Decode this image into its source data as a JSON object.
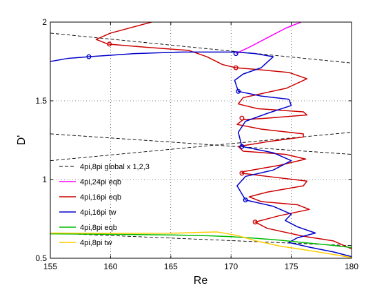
{
  "chart_data": {
    "type": "line",
    "title": "",
    "xlabel": "Re",
    "ylabel": "D'",
    "xlim": [
      155,
      180
    ],
    "ylim": [
      0.5,
      2
    ],
    "xticks": [
      "155",
      "160",
      "165",
      "170",
      "175",
      "180"
    ],
    "yticks": [
      "0.5",
      "1",
      "1.5",
      "2"
    ],
    "grid": true,
    "legend_position": "bottom-left",
    "series": [
      {
        "name": "4pi,8pi global x 1,2,3",
        "color": "#000000",
        "style": "dashed",
        "lines": [
          [
            [
              155,
              1.93
            ],
            [
              180,
              1.74
            ]
          ],
          [
            [
              155,
              1.29
            ],
            [
              180,
              1.16
            ]
          ],
          [
            [
              155,
              1.12
            ],
            [
              180,
              1.3
            ]
          ],
          [
            [
              155,
              0.66
            ],
            [
              180,
              0.58
            ]
          ]
        ]
      },
      {
        "name": "4pi,24pi eqb",
        "color": "#ff00ff",
        "style": "solid",
        "points": [
          [
            170.4,
            1.8
          ],
          [
            171.5,
            1.84
          ],
          [
            173.0,
            1.9
          ],
          [
            174.5,
            1.96
          ],
          [
            175.8,
            2.0
          ]
        ]
      },
      {
        "name": "4pi,16pi eqb",
        "color": "#cc0000",
        "style": "solid",
        "points": [
          [
            163.4,
            2.0
          ],
          [
            160.0,
            1.93
          ],
          [
            158.8,
            1.89
          ],
          [
            159.8,
            1.86
          ],
          [
            163.0,
            1.84
          ],
          [
            166.5,
            1.82
          ],
          [
            168.0,
            1.78
          ],
          [
            169.3,
            1.73
          ],
          [
            170.4,
            1.71
          ],
          [
            172.0,
            1.7
          ],
          [
            174.8,
            1.68
          ],
          [
            176.3,
            1.64
          ],
          [
            174.6,
            1.58
          ],
          [
            171.0,
            1.52
          ],
          [
            170.6,
            1.48
          ],
          [
            172.2,
            1.45
          ],
          [
            176.0,
            1.43
          ],
          [
            176.3,
            1.41
          ],
          [
            173.0,
            1.39
          ],
          [
            171.0,
            1.38
          ],
          [
            170.5,
            1.35
          ],
          [
            172.5,
            1.32
          ],
          [
            176.0,
            1.29
          ],
          [
            176.0,
            1.27
          ],
          [
            173.0,
            1.24
          ],
          [
            170.6,
            1.21
          ],
          [
            171.0,
            1.18
          ],
          [
            174.5,
            1.16
          ],
          [
            176.2,
            1.13
          ],
          [
            174.0,
            1.09
          ],
          [
            171.0,
            1.05
          ],
          [
            170.9,
            1.04
          ],
          [
            173.0,
            1.02
          ],
          [
            176.3,
            0.99
          ],
          [
            176.0,
            0.96
          ],
          [
            173.0,
            0.92
          ],
          [
            171.5,
            0.89
          ],
          [
            172.5,
            0.86
          ],
          [
            175.5,
            0.84
          ],
          [
            176.5,
            0.81
          ],
          [
            174.0,
            0.77
          ],
          [
            172.0,
            0.73
          ],
          [
            173.0,
            0.69
          ],
          [
            176.0,
            0.64
          ],
          [
            178.5,
            0.61
          ],
          [
            180.0,
            0.56
          ]
        ]
      },
      {
        "name": "4pi,16pi tw",
        "color": "#0000cc",
        "style": "solid",
        "points": [
          [
            155.0,
            1.75
          ],
          [
            156.5,
            1.77
          ],
          [
            158.2,
            1.78
          ],
          [
            162.0,
            1.8
          ],
          [
            166.0,
            1.81
          ],
          [
            170.4,
            1.81
          ],
          [
            172.0,
            1.8
          ],
          [
            173.5,
            1.78
          ],
          [
            172.5,
            1.71
          ],
          [
            171.0,
            1.67
          ],
          [
            170.3,
            1.63
          ],
          [
            170.6,
            1.56
          ],
          [
            172.5,
            1.53
          ],
          [
            174.8,
            1.51
          ],
          [
            175.0,
            1.47
          ],
          [
            173.0,
            1.42
          ],
          [
            171.2,
            1.37
          ],
          [
            170.6,
            1.3
          ],
          [
            170.9,
            1.21
          ],
          [
            173.5,
            1.17
          ],
          [
            175.0,
            1.12
          ],
          [
            173.5,
            1.06
          ],
          [
            171.2,
            1.02
          ],
          [
            170.5,
            0.96
          ],
          [
            171.2,
            0.87
          ],
          [
            173.5,
            0.83
          ],
          [
            175.0,
            0.78
          ],
          [
            174.5,
            0.74
          ],
          [
            175.5,
            0.7
          ],
          [
            177.0,
            0.66
          ],
          [
            175.5,
            0.63
          ],
          [
            174.8,
            0.6
          ],
          [
            176.5,
            0.57
          ],
          [
            178.5,
            0.54
          ],
          [
            180.0,
            0.51
          ]
        ]
      },
      {
        "name": "4pi,8pi eqb",
        "color": "#00bb00",
        "style": "solid",
        "points": [
          [
            155.0,
            0.655
          ],
          [
            160.0,
            0.652
          ],
          [
            165.0,
            0.648
          ],
          [
            168.0,
            0.643
          ],
          [
            170.0,
            0.637
          ],
          [
            172.0,
            0.627
          ],
          [
            174.0,
            0.615
          ],
          [
            176.0,
            0.6
          ],
          [
            178.0,
            0.585
          ],
          [
            180.0,
            0.568
          ]
        ]
      },
      {
        "name": "4pi,8pi tw",
        "color": "#ffcc00",
        "style": "solid",
        "points": [
          [
            155.0,
            0.66
          ],
          [
            160.0,
            0.658
          ],
          [
            165.0,
            0.659
          ],
          [
            168.8,
            0.667
          ],
          [
            170.5,
            0.645
          ],
          [
            172.0,
            0.612
          ],
          [
            174.0,
            0.578
          ],
          [
            176.0,
            0.555
          ],
          [
            178.0,
            0.53
          ],
          [
            180.0,
            0.505
          ]
        ]
      }
    ],
    "markers": [
      {
        "series": "4pi,16pi eqb",
        "color": "#cc0000",
        "points": [
          [
            159.9,
            1.86
          ],
          [
            170.4,
            1.71
          ],
          [
            170.9,
            1.39
          ],
          [
            170.9,
            1.04
          ],
          [
            172.0,
            0.73
          ]
        ]
      },
      {
        "series": "4pi,16pi tw",
        "color": "#0000cc",
        "points": [
          [
            158.2,
            1.78
          ],
          [
            170.4,
            1.8
          ],
          [
            170.6,
            1.56
          ],
          [
            170.9,
            1.21
          ],
          [
            171.2,
            0.87
          ]
        ]
      }
    ]
  }
}
